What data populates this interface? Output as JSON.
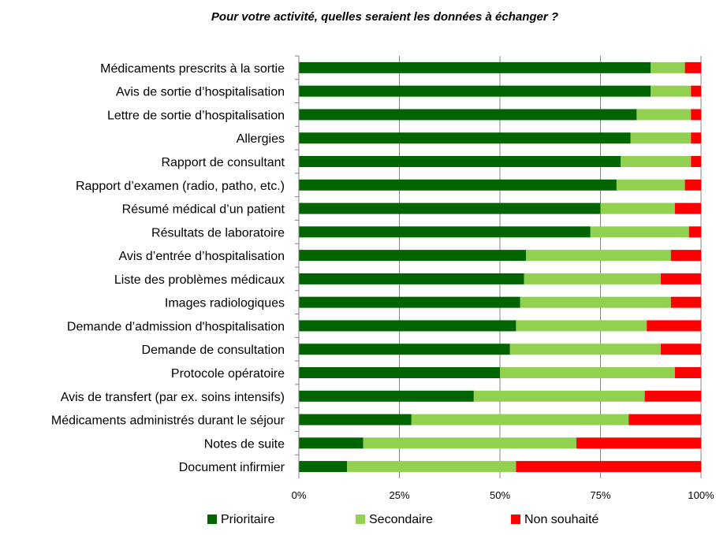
{
  "chart_data": {
    "type": "bar",
    "orientation": "horizontal",
    "stacked": "percent",
    "title": "Pour votre activité, quelles seraient les données à échanger ?",
    "categories": [
      "Médicaments prescrits à la sortie",
      "Avis de sortie d’hospitalisation",
      "Lettre de sortie d’hospitalisation",
      "Allergies",
      "Rapport de consultant",
      "Rapport d’examen (radio, patho, etc.)",
      "Résumé médical d’un patient",
      "Résultats de laboratoire",
      "Avis d’entrée d’hospitalisation",
      "Liste des problèmes médicaux",
      "Images radiologiques",
      "Demande d’admission d'hospitalisation",
      "Demande de consultation",
      "Protocole opératoire",
      "Avis de transfert (par ex. soins intensifs)",
      "Médicaments administrés durant le séjour",
      "Notes de suite",
      "Document infirmier"
    ],
    "series": [
      {
        "name": "Prioritaire",
        "color": "#006400",
        "values": [
          87.5,
          87.5,
          84,
          82.5,
          80,
          79,
          75,
          72.5,
          56.5,
          56,
          55,
          54,
          52.5,
          50,
          43.5,
          28,
          16,
          12
        ]
      },
      {
        "name": "Secondaire",
        "color": "#92d050",
        "values": [
          8.5,
          10,
          13.5,
          15,
          17.5,
          17,
          18.5,
          24.5,
          36,
          34,
          37.5,
          32.5,
          37.5,
          43.5,
          42.5,
          54,
          53,
          42
        ]
      },
      {
        "name": "Non souhaité",
        "color": "#ff0000",
        "values": [
          4,
          2.5,
          2.5,
          2.5,
          2.5,
          4,
          6.5,
          3,
          7.5,
          10,
          7.5,
          13.5,
          10,
          6.5,
          14,
          18,
          31,
          46
        ]
      }
    ],
    "xlim": [
      0,
      100
    ],
    "xticks": [
      "0%",
      "25%",
      "50%",
      "75%",
      "100%"
    ],
    "grid": "vertical",
    "legend_position": "bottom"
  }
}
